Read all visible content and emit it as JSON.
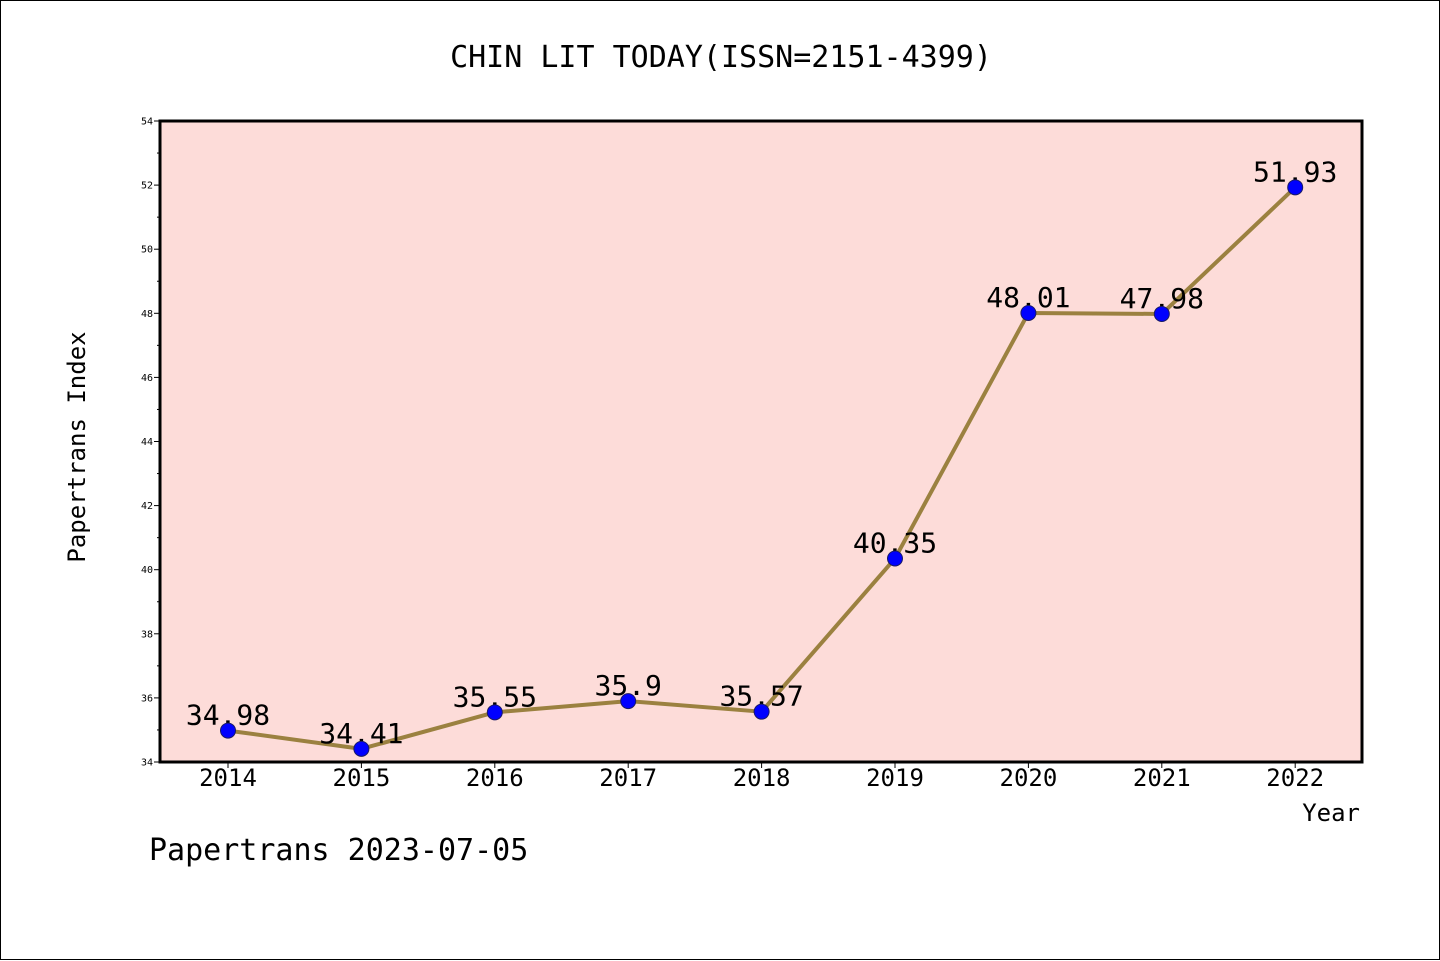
{
  "chart_data": {
    "type": "line",
    "title": "CHIN LIT TODAY(ISSN=2151-4399)",
    "xlabel": "Year",
    "ylabel": "Papertrans Index",
    "categories": [
      "2014",
      "2015",
      "2016",
      "2017",
      "2018",
      "2019",
      "2020",
      "2021",
      "2022"
    ],
    "series": [
      {
        "values": [
          34.98,
          34.41,
          35.55,
          35.9,
          35.57,
          40.35,
          48.01,
          47.98,
          51.93
        ],
        "data_labels": [
          "34.98",
          "34.41",
          "35.55",
          "35.9",
          "35.57",
          "40.35",
          "48.01",
          "47.98",
          "51.93"
        ]
      }
    ],
    "ylim": [
      34,
      54
    ],
    "yticks": [
      34,
      36,
      38,
      40,
      42,
      44,
      46,
      48,
      50,
      52,
      54
    ],
    "grid": false,
    "legend": "none",
    "colors": {
      "plot_background": "#fddcd9",
      "line": "#9b8140",
      "marker": "#0000ff",
      "marker_edge": "#1a1a66"
    }
  },
  "footer": {
    "text": "Papertrans 2023-07-05"
  }
}
